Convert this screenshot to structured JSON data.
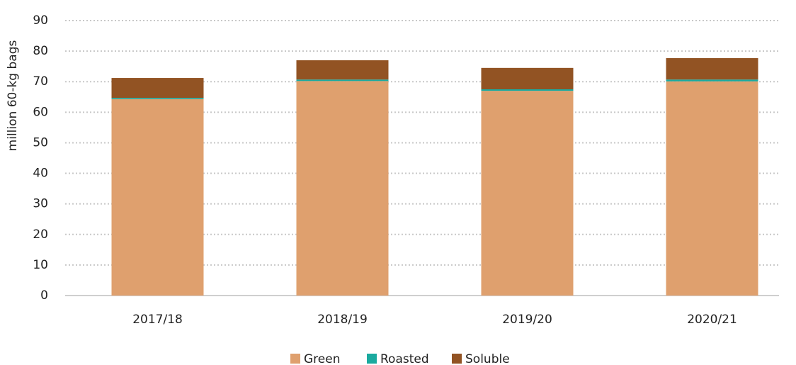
{
  "chart_data": {
    "type": "stacked_bar",
    "y_label": "million 60-kg bags",
    "categories": [
      "2017/18",
      "2018/19",
      "2019/20",
      "2020/21"
    ],
    "series": [
      {
        "name": "Green",
        "color": "#dfa06e",
        "values": [
          64.3,
          70.2,
          67.0,
          70.1
        ]
      },
      {
        "name": "Roasted",
        "color": "#1aaa9f",
        "values": [
          0.4,
          0.5,
          0.5,
          0.6
        ]
      },
      {
        "name": "Soluble",
        "color": "#925323",
        "values": [
          6.5,
          6.3,
          7.0,
          7.0
        ]
      }
    ],
    "ylim": [
      0,
      90
    ],
    "yticks": [
      0,
      10,
      20,
      30,
      40,
      50,
      60,
      70,
      80,
      90
    ],
    "grid": true,
    "legend": "bottom"
  }
}
